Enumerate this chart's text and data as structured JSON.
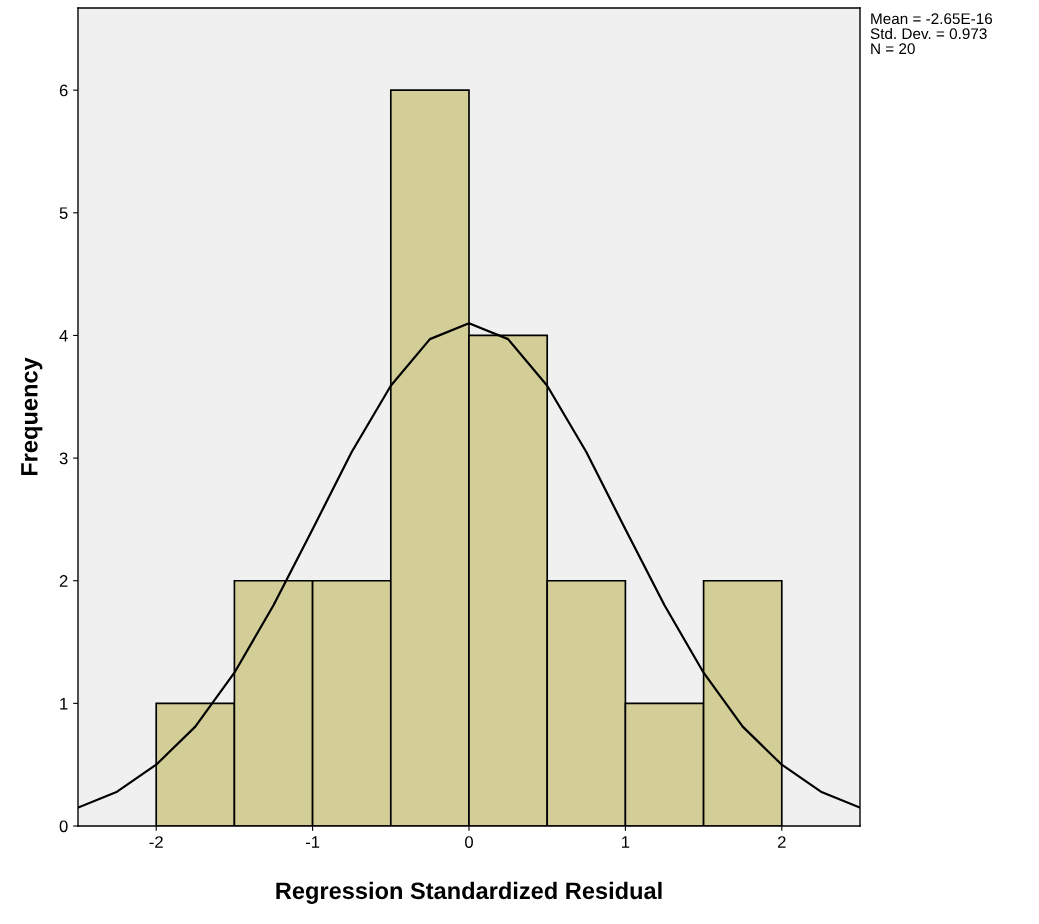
{
  "chart_data": {
    "type": "histogram",
    "xlabel": "Regression Standardized Residual",
    "ylabel": "Frequency",
    "bins": [
      -2,
      -1.5,
      -1,
      -0.5,
      0,
      0.5,
      1,
      1.5,
      2
    ],
    "values": [
      1,
      2,
      2,
      6,
      4,
      2,
      1,
      2
    ],
    "color": "#d3ce97",
    "series": [
      {
        "type": "line",
        "color": "#000000",
        "x": [
          -2.5,
          -2.25,
          -2,
          -1.75,
          -1.5,
          -1.25,
          -1,
          -0.75,
          -0.5,
          -0.25,
          0,
          0.25,
          0.5,
          0.75,
          1,
          1.25,
          1.5,
          1.75,
          2,
          2.25,
          2.5
        ],
        "values": [
          0.15,
          0.28,
          0.5,
          0.81,
          1.25,
          1.8,
          2.42,
          3.05,
          3.59,
          3.97,
          4.1,
          3.97,
          3.59,
          3.05,
          2.42,
          1.8,
          1.25,
          0.81,
          0.5,
          0.28,
          0.15
        ]
      }
    ],
    "xlim": [
      -2.5,
      2.5
    ],
    "ylim": [
      0,
      6.67
    ],
    "xticks": [
      -2,
      -1,
      0,
      1,
      2
    ],
    "yticks": [
      0,
      1,
      2,
      3,
      4,
      5,
      6
    ],
    "grid": false,
    "marker": "none",
    "line_style": "solid",
    "annotations": [
      "Mean = -2.65E-16",
      "Std. Dev. = 0.973",
      "N = 20"
    ]
  }
}
